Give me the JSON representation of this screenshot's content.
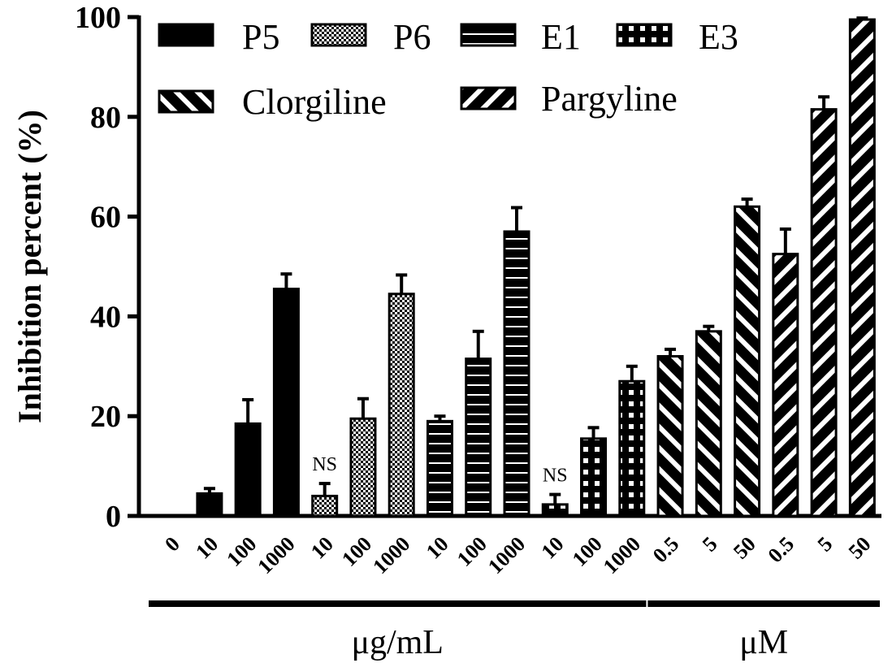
{
  "chart_data": {
    "type": "bar",
    "title": "",
    "ylabel": "Inhibition percent (%)",
    "ylim": [
      0,
      100
    ],
    "yticks": [
      "0",
      "20",
      "40",
      "60",
      "80",
      "100"
    ],
    "grid": false,
    "legend_position": "top-left",
    "categories": [
      "0",
      "10",
      "100",
      "1000",
      "10",
      "100",
      "1000",
      "10",
      "100",
      "1000",
      "10",
      "100",
      "1000",
      "0.5",
      "5",
      "50",
      "0.5",
      "5",
      "50"
    ],
    "values": [
      0,
      4.5,
      18.5,
      45.5,
      4,
      19.5,
      44.5,
      19,
      31.5,
      57,
      2.3,
      15.5,
      27,
      32,
      37,
      62,
      52.5,
      81.5,
      99.5
    ],
    "errors": [
      0,
      1.0,
      4.8,
      3.0,
      2.5,
      4.0,
      3.8,
      1.0,
      5.5,
      4.8,
      2.0,
      2.2,
      3.0,
      1.4,
      1.0,
      1.5,
      5.0,
      2.5,
      0.3
    ],
    "bar_series": [
      0,
      0,
      0,
      0,
      1,
      1,
      1,
      2,
      2,
      2,
      3,
      3,
      3,
      4,
      4,
      4,
      5,
      5,
      5
    ],
    "series": [
      {
        "name": "P5",
        "pattern": "solid"
      },
      {
        "name": "P6",
        "pattern": "checker"
      },
      {
        "name": "E1",
        "pattern": "hline"
      },
      {
        "name": "E3",
        "pattern": "squares"
      },
      {
        "name": "Clorgiline",
        "pattern": "diag-back"
      },
      {
        "name": "Pargyline",
        "pattern": "diag-fwd"
      }
    ],
    "annotations": [
      {
        "text": "NS",
        "bar_index": 4
      },
      {
        "text": "NS",
        "bar_index": 10
      }
    ],
    "unit_groups": [
      {
        "label": "μg/mL",
        "from_bar": 0,
        "to_bar": 12
      },
      {
        "label": "μM",
        "from_bar": 13,
        "to_bar": 18
      }
    ],
    "colors": {
      "bar": "#000000",
      "background": "#ffffff"
    }
  }
}
